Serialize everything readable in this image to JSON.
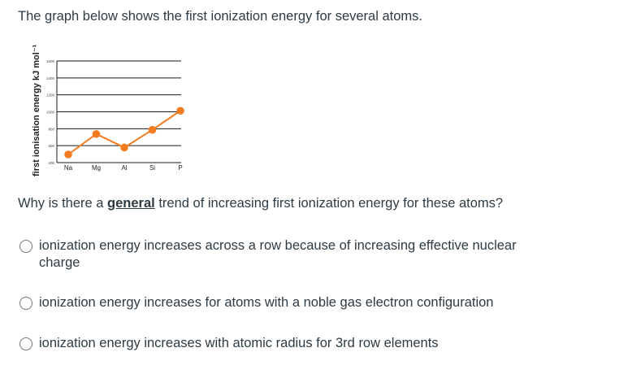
{
  "question": {
    "intro": "The graph below shows the first ionization energy for several atoms.",
    "prompt_before": "Why is there a ",
    "prompt_emphasis": "general",
    "prompt_after": " trend of increasing first ionization energy for these atoms?"
  },
  "answers": [
    {
      "label": "ionization energy increases across a row because of increasing effective nuclear charge"
    },
    {
      "label": "ionization energy increases for atoms with a noble gas electron configuration"
    },
    {
      "label": "ionization energy increases with atomic radius for 3rd row elements"
    }
  ],
  "chart_data": {
    "type": "line",
    "ylabel": "first ionisation energy kJ mol⁻¹",
    "categories": [
      "Na",
      "Mg",
      "Al",
      "Si",
      "P"
    ],
    "yticks": [
      "400",
      "600",
      "800",
      "1000",
      "1200",
      "1400",
      "1600"
    ],
    "ylim": [
      400,
      1600
    ],
    "grid": true,
    "series": [
      {
        "values": [
          496,
          738,
          578,
          787,
          1012
        ],
        "color": "#f47c20"
      }
    ]
  }
}
